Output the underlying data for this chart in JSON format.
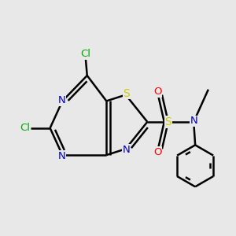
{
  "bg_color": "#e8e8e8",
  "bond_color": "#000000",
  "bond_width": 1.8,
  "colors": {
    "N": "#0000cc",
    "S": "#cccc00",
    "Cl": "#00aa00",
    "O": "#ff0000",
    "N_sul": "#0000cc",
    "CH3_line": "#000000"
  },
  "figsize": [
    3.0,
    3.0
  ],
  "dpi": 100
}
